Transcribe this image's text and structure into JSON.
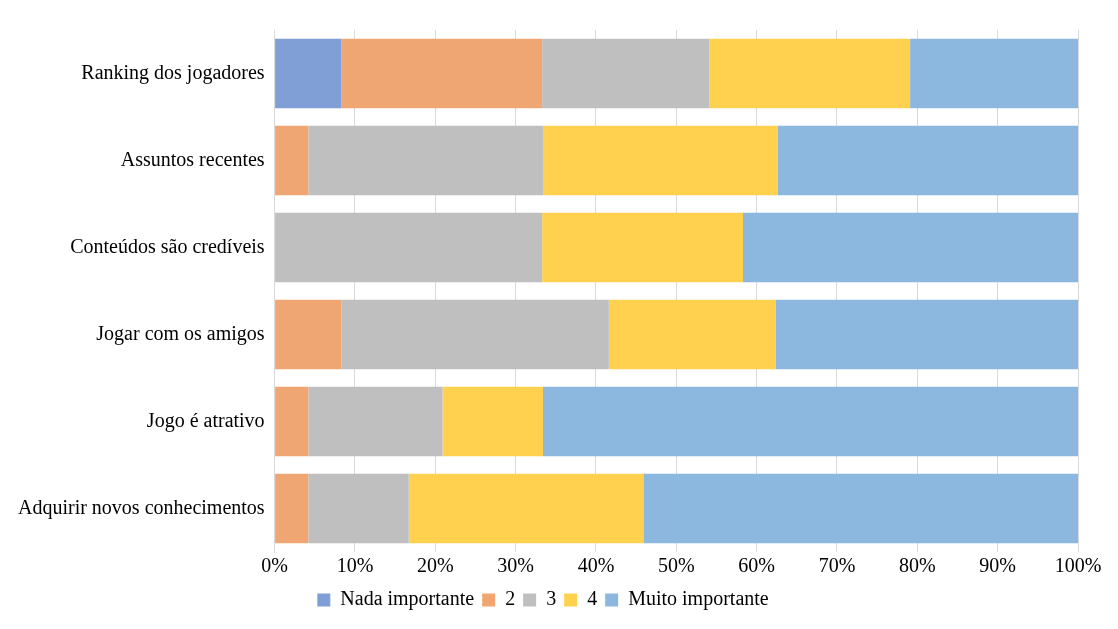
{
  "chart_data": {
    "type": "bar",
    "orientation": "horizontal",
    "stacked": true,
    "categories": [
      "Ranking dos jogadores",
      "Assuntos recentes",
      "Conteúdos são credíveis",
      "Jogar com os amigos",
      "Jogo é atrativo",
      "Adquirir novos conhecimentos"
    ],
    "series": [
      {
        "name": "Nada importante",
        "color": "#7f9fd6",
        "values": [
          8.3,
          0,
          0,
          0,
          0,
          0
        ]
      },
      {
        "name": "2",
        "color": "#f0a672",
        "values": [
          25,
          4.2,
          0,
          8.3,
          4.2,
          4.2
        ]
      },
      {
        "name": "3",
        "color": "#bfbfbf",
        "values": [
          20.8,
          29.2,
          33.3,
          33.3,
          16.7,
          12.5
        ]
      },
      {
        "name": "4",
        "color": "#ffd14f",
        "values": [
          25,
          29.2,
          25,
          20.8,
          12.5,
          29.2
        ]
      },
      {
        "name": "Muito importante",
        "color": "#8cb8e0",
        "values": [
          20.9,
          37.5,
          41.7,
          37.6,
          66.6,
          54.1
        ]
      }
    ],
    "xlim": [
      0,
      100
    ],
    "xticks": [
      {
        "value": 0,
        "label": "0%"
      },
      {
        "value": 10,
        "label": "10%"
      },
      {
        "value": 20,
        "label": "20%"
      },
      {
        "value": 30,
        "label": "30%"
      },
      {
        "value": 40,
        "label": "40%"
      },
      {
        "value": 50,
        "label": "50%"
      },
      {
        "value": 60,
        "label": "60%"
      },
      {
        "value": 70,
        "label": "70%"
      },
      {
        "value": 80,
        "label": "80%"
      },
      {
        "value": 90,
        "label": "90%"
      },
      {
        "value": 100,
        "label": "100%"
      }
    ],
    "grid": "x",
    "legend": "bottom"
  }
}
